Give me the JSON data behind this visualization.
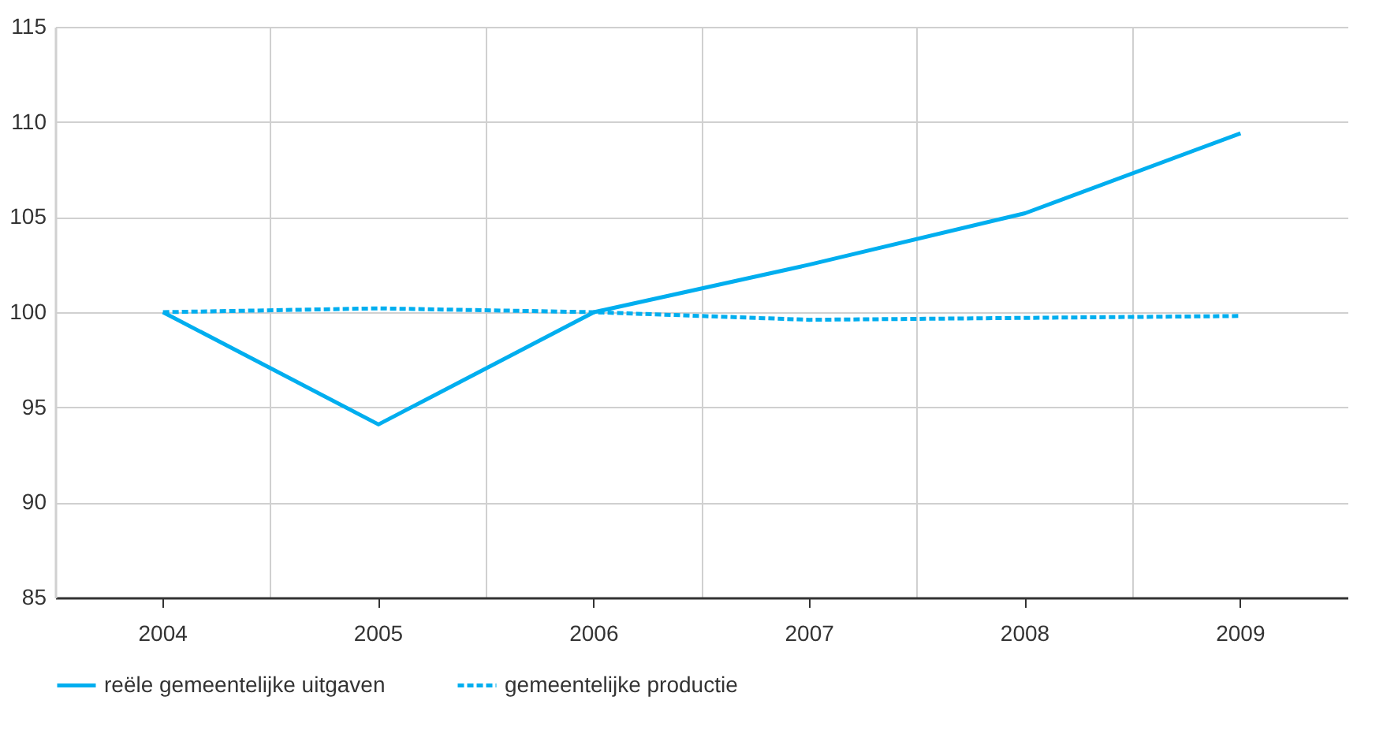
{
  "chart_data": {
    "type": "line",
    "categories": [
      "2004",
      "2005",
      "2006",
      "2007",
      "2008",
      "2009"
    ],
    "series": [
      {
        "name": "reële gemeentelijke uitgaven",
        "color": "#00aeef",
        "line_style": "solid",
        "values": [
          100,
          94.1,
          100,
          102.5,
          105.2,
          109.4
        ]
      },
      {
        "name": "gemeentelijke productie",
        "color": "#00aeef",
        "line_style": "dashed",
        "values": [
          100,
          100.2,
          100,
          99.6,
          99.7,
          99.8
        ]
      }
    ],
    "ylim": [
      85,
      115
    ],
    "yticks": [
      85,
      90,
      95,
      100,
      105,
      110,
      115
    ],
    "grid": true,
    "legend": "bottom left",
    "marker": "none"
  }
}
